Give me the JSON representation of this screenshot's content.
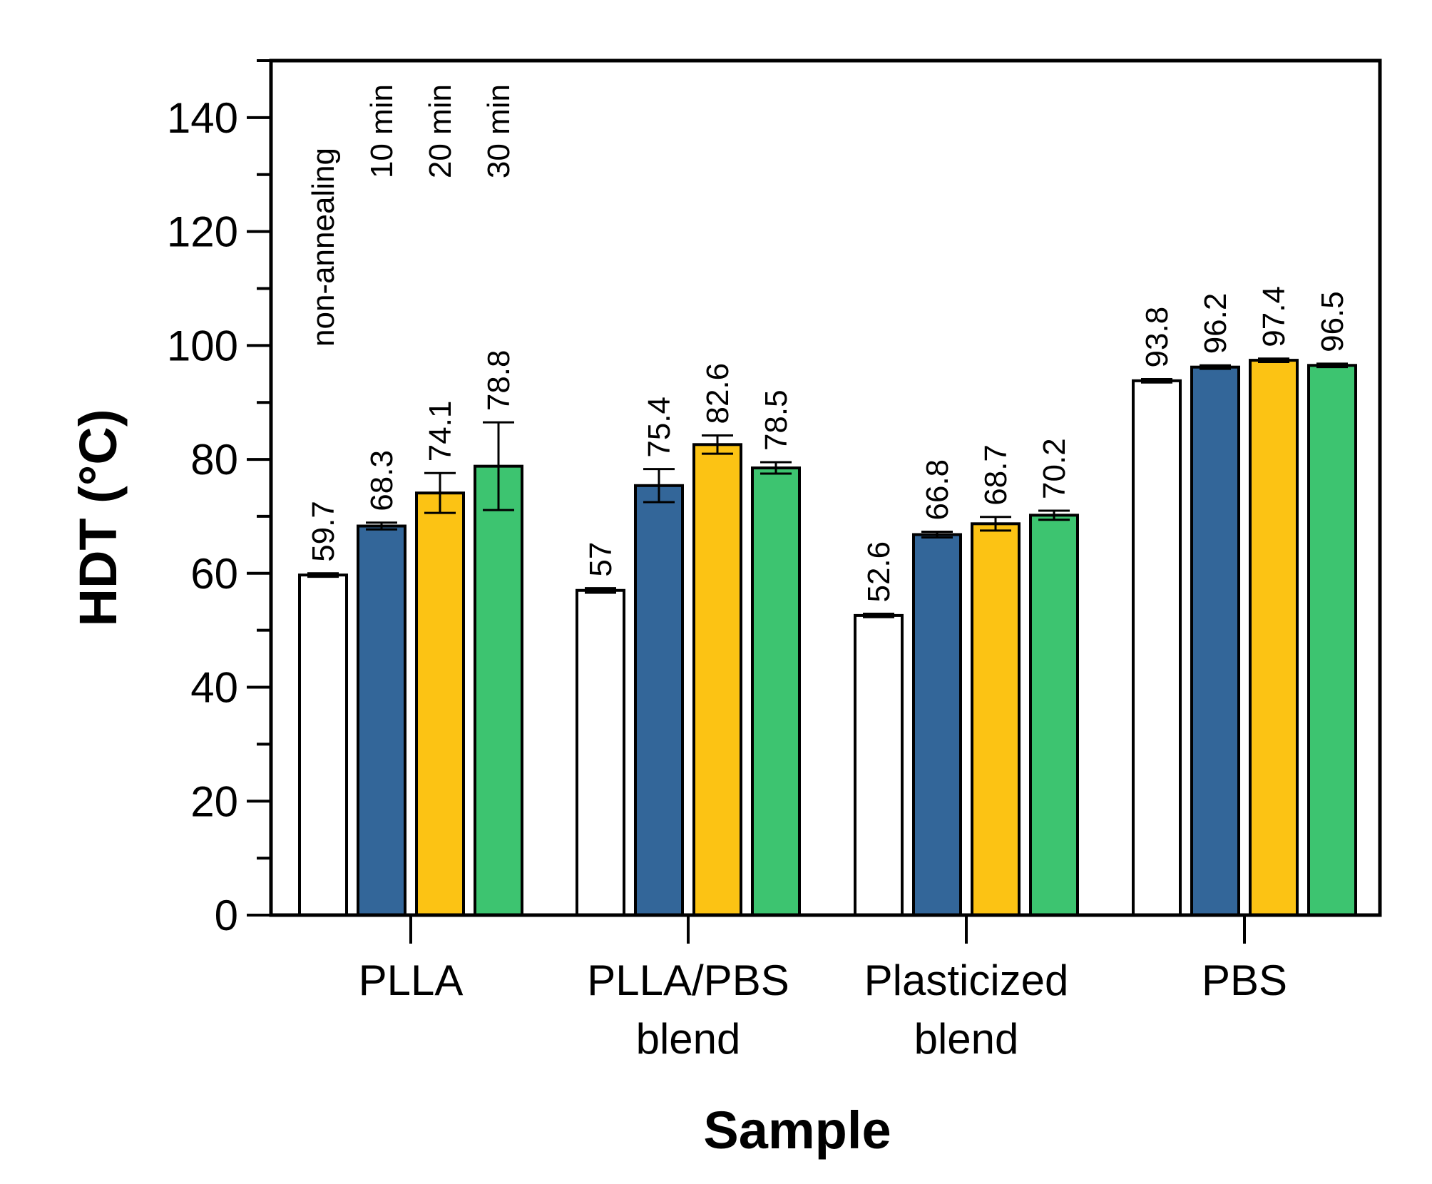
{
  "chart_data": {
    "type": "bar",
    "title": "",
    "xlabel": "Sample",
    "ylabel": "HDT (°C)",
    "ylim": [
      0,
      150
    ],
    "yticks": [
      0,
      20,
      40,
      60,
      80,
      100,
      120,
      140
    ],
    "grid": false,
    "legend_placement": "top-left, rotated labels above first group",
    "categories": [
      {
        "line1": "PLLA",
        "line2": ""
      },
      {
        "line1": "PLLA/PBS",
        "line2": "blend"
      },
      {
        "line1": "Plasticized",
        "line2": "blend"
      },
      {
        "line1": "PBS",
        "line2": ""
      }
    ],
    "series": [
      {
        "name": "non-annealing",
        "color": "#ffffff",
        "values": [
          59.7,
          57,
          52.6,
          93.8
        ],
        "labels": [
          "59.7",
          "57",
          "52.6",
          "93.8"
        ],
        "errors": [
          0.3,
          0.4,
          0.3,
          0.3
        ]
      },
      {
        "name": "10 min",
        "color": "#336699",
        "values": [
          68.3,
          75.4,
          66.8,
          96.2
        ],
        "labels": [
          "68.3",
          "75.4",
          "66.8",
          "96.2"
        ],
        "errors": [
          0.6,
          2.9,
          0.5,
          0.3
        ]
      },
      {
        "name": "20 min",
        "color": "#fcc314",
        "values": [
          74.1,
          82.6,
          68.7,
          97.4
        ],
        "labels": [
          "74.1",
          "82.6",
          "68.7",
          "97.4"
        ],
        "errors": [
          3.5,
          1.6,
          1.2,
          0.3
        ]
      },
      {
        "name": "30 min",
        "color": "#3dc470",
        "values": [
          78.8,
          78.5,
          70.2,
          96.5
        ],
        "labels": [
          "78.8",
          "78.5",
          "70.2",
          "96.5"
        ],
        "errors": [
          7.7,
          1.0,
          0.8,
          0.3
        ]
      }
    ]
  }
}
